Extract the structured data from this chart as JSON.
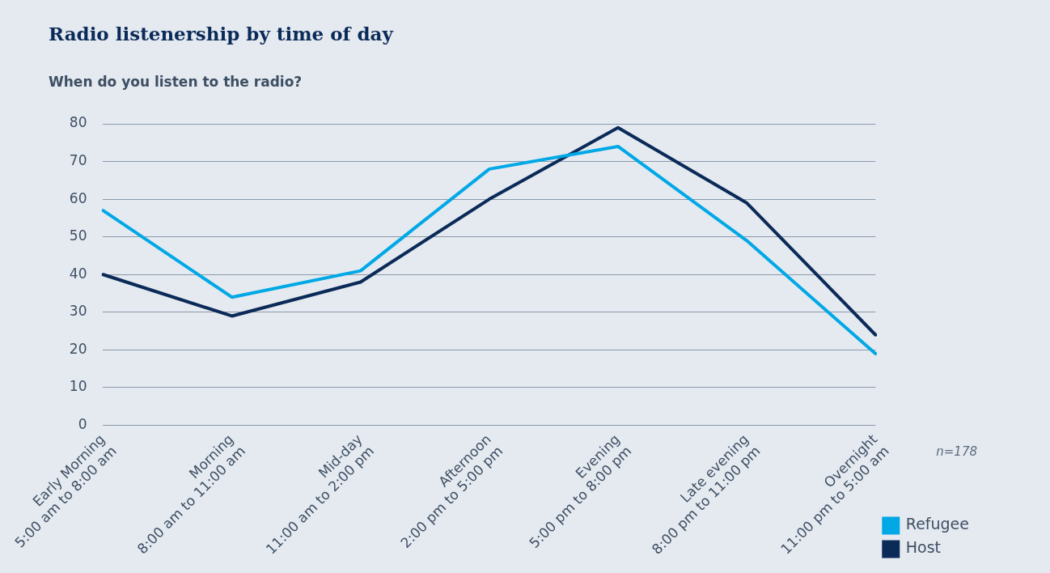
{
  "chart_data": {
    "type": "line",
    "title": "Radio listenership by time of day",
    "subtitle": "When do you listen to the radio?",
    "categories": [
      "Early Morning\n5:00 am to 8:00 am",
      "Morning\n8:00 am to 11:00 am",
      "Mid-day\n11:00 am to 2:00 pm",
      "Afternoon\n2:00 pm to 5:00 pm",
      "Evening\n5:00 pm to 8:00 pm",
      "Late evening\n8:00 pm to 11:00 pm",
      "Overnight\n11:00 pm to 5:00 am"
    ],
    "series": [
      {
        "name": "Refugee",
        "color": "#00a8e6",
        "values": [
          57,
          34,
          41,
          68,
          74,
          49,
          19
        ]
      },
      {
        "name": "Host",
        "color": "#0a2a58",
        "values": [
          40,
          29,
          38,
          60,
          79,
          59,
          24
        ]
      }
    ],
    "ylim": [
      0,
      80
    ],
    "yticks": [
      0,
      10,
      20,
      30,
      40,
      50,
      60,
      70,
      80
    ],
    "grid": "y",
    "legend": "right",
    "marker": "none",
    "line_style": "solid",
    "annotations": [
      "n=178"
    ]
  }
}
